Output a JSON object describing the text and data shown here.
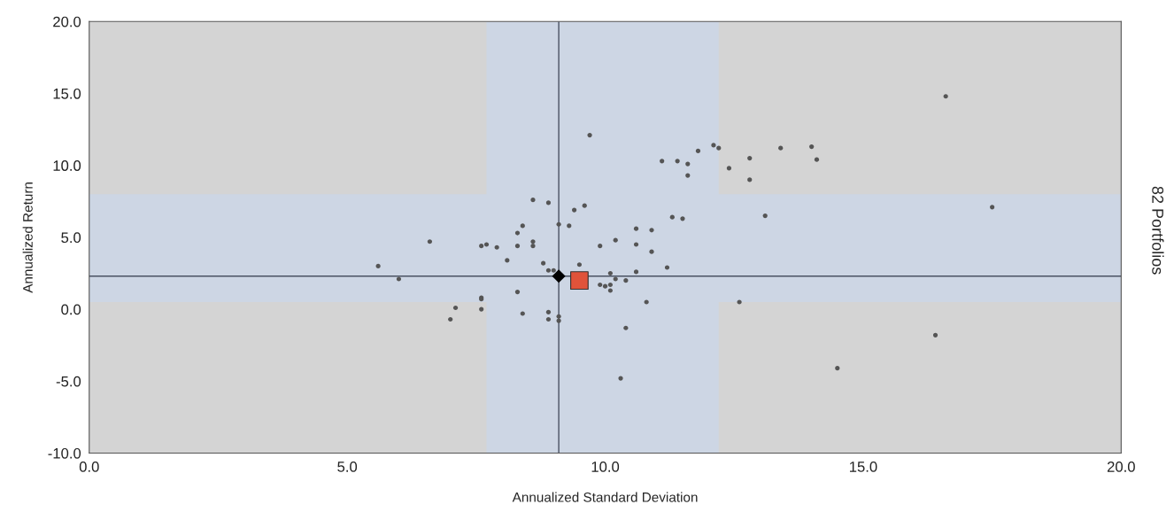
{
  "chart_data": {
    "type": "scatter",
    "xlabel": "Annualized Standard Deviation",
    "ylabel": "Annualized Return",
    "annotations": [
      "82 Portfolios"
    ],
    "xlim": [
      0,
      20
    ],
    "ylim": [
      -10,
      20
    ],
    "xticks": [
      {
        "value": 0,
        "label": "0.0"
      },
      {
        "value": 5,
        "label": "5.0"
      },
      {
        "value": 10,
        "label": "10.0"
      },
      {
        "value": 15,
        "label": "15.0"
      },
      {
        "value": 20,
        "label": "20.0"
      }
    ],
    "yticks": [
      {
        "value": -10,
        "label": "-10.0"
      },
      {
        "value": -5,
        "label": "-5.0"
      },
      {
        "value": 0,
        "label": "0.0"
      },
      {
        "value": 5,
        "label": "5.0"
      },
      {
        "value": 10,
        "label": "10.0"
      },
      {
        "value": 15,
        "label": "15.0"
      },
      {
        "value": 20,
        "label": "20.0"
      }
    ],
    "grid": false,
    "bands": [
      {
        "axis": "x",
        "from": 7.7,
        "to": 12.2,
        "color": "#cdd6e4"
      },
      {
        "axis": "y",
        "from": 0.5,
        "to": 8.0,
        "color": "#cdd6e4"
      }
    ],
    "ref_lines": [
      {
        "axis": "x",
        "value": 9.1,
        "color": "#4a5262"
      },
      {
        "axis": "y",
        "value": 2.3,
        "color": "#4a5262"
      }
    ],
    "series": [
      {
        "color": "#555555",
        "marker": "circle",
        "x": [
          5.6,
          6.6,
          7.0,
          7.1,
          7.6,
          7.6,
          7.6,
          7.7,
          7.6,
          7.9,
          8.1,
          8.3,
          8.4,
          8.3,
          8.6,
          8.6,
          8.6,
          8.9,
          9.4,
          9.1,
          9.3,
          9.6,
          8.8,
          8.9,
          9.0,
          6.0,
          8.3,
          8.4,
          8.9,
          8.9,
          9.1,
          9.1,
          9.7,
          11.1,
          11.4,
          11.6,
          11.6,
          11.8,
          12.1,
          12.2,
          12.4,
          12.8,
          12.8,
          13.4,
          14.0,
          14.1,
          11.3,
          11.5,
          13.1,
          10.6,
          10.9,
          10.2,
          10.6,
          9.9,
          10.9,
          11.2,
          9.5,
          10.6,
          10.1,
          10.2,
          10.4,
          9.9,
          10.0,
          10.1,
          10.1,
          10.8,
          12.6,
          10.4,
          10.3,
          14.5,
          16.6,
          17.5,
          16.4
        ],
        "values": [
          3.0,
          4.7,
          -0.7,
          0.1,
          0.8,
          0.7,
          0.0,
          4.5,
          4.4,
          4.3,
          3.4,
          5.3,
          5.8,
          4.4,
          4.7,
          4.4,
          7.6,
          7.4,
          6.9,
          5.9,
          5.8,
          7.2,
          3.2,
          2.7,
          2.7,
          2.1,
          1.2,
          -0.3,
          -0.2,
          -0.7,
          -0.5,
          -0.8,
          12.1,
          10.3,
          10.3,
          10.1,
          9.3,
          11.0,
          11.4,
          11.2,
          9.8,
          10.5,
          9.0,
          11.2,
          11.3,
          10.4,
          6.4,
          6.3,
          6.5,
          5.6,
          5.5,
          4.8,
          4.5,
          4.4,
          4.0,
          2.9,
          3.1,
          2.6,
          2.5,
          2.1,
          2.0,
          1.7,
          1.6,
          1.7,
          1.3,
          0.5,
          0.5,
          -1.3,
          -4.8,
          -4.1,
          14.8,
          7.1,
          -1.8
        ]
      },
      {
        "color": "#000000",
        "marker": "diamond",
        "x": [
          9.1
        ],
        "values": [
          2.3
        ]
      },
      {
        "color": "#e0533a",
        "marker": "square",
        "x": [
          9.5
        ],
        "values": [
          2.0
        ]
      }
    ]
  }
}
